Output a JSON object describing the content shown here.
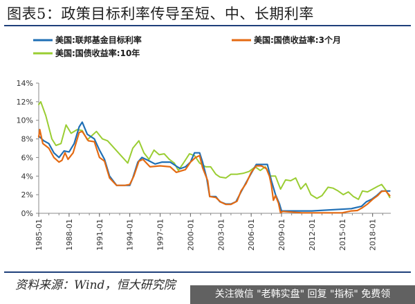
{
  "page": {
    "title": "图表5：政策目标利率传导至短、中、长期利率",
    "source": "资料来源：Wind，恒大研究院",
    "watermark": "关注微信 \"老韩实盘\" 回复 \"指标\" 免费领"
  },
  "chart_data": {
    "type": "line",
    "title": "图表5：政策目标利率传导至短、中、长期利率",
    "xlabel": "",
    "ylabel": "",
    "xlim": [
      1985,
      2019.8
    ],
    "ylim": [
      0,
      14
    ],
    "y_ticks": [
      "0%",
      "2%",
      "4%",
      "6%",
      "8%",
      "10%",
      "12%",
      "14%"
    ],
    "x_ticks": [
      "1985-01",
      "1988-01",
      "1991-01",
      "1994-01",
      "1997-01",
      "2000-01",
      "2003-01",
      "2006-01",
      "2009-01",
      "2012-01",
      "2015-01",
      "2018-01"
    ],
    "x_tick_values": [
      1985,
      1988,
      1991,
      1994,
      1997,
      2000,
      2003,
      2006,
      2009,
      2012,
      2015,
      2018
    ],
    "grid": false,
    "legend_position": "top",
    "series": [
      {
        "name": "美国:联邦基金目标利率",
        "color": "#1f6fb5",
        "x": [
          1985.0,
          1985.5,
          1986.0,
          1986.5,
          1987.0,
          1987.5,
          1988.0,
          1988.5,
          1989.0,
          1989.3,
          1989.8,
          1990.5,
          1991.0,
          1991.5,
          1992.0,
          1992.7,
          1993.5,
          1994.0,
          1994.3,
          1994.8,
          1995.2,
          1995.8,
          1996.5,
          1997.2,
          1998.0,
          1998.7,
          1999.0,
          1999.5,
          2000.0,
          2000.4,
          2000.9,
          2001.2,
          2001.6,
          2001.9,
          2002.5,
          2002.9,
          2003.5,
          2004.0,
          2004.5,
          2005.0,
          2005.5,
          2006.0,
          2006.5,
          2007.0,
          2007.6,
          2008.0,
          2008.4,
          2008.8,
          2009.0,
          2012.0,
          2015.9,
          2016.9,
          2017.4,
          2017.9,
          2018.4,
          2018.9,
          2019.4,
          2019.7
        ],
        "y": [
          8.3,
          7.8,
          7.5,
          6.5,
          6.0,
          6.7,
          6.6,
          7.5,
          9.3,
          9.8,
          8.5,
          8.0,
          6.8,
          5.8,
          4.0,
          3.0,
          3.0,
          3.0,
          3.8,
          5.5,
          6.0,
          5.7,
          5.3,
          5.5,
          5.5,
          5.0,
          4.8,
          5.0,
          5.5,
          6.5,
          6.5,
          5.5,
          3.8,
          1.8,
          1.8,
          1.25,
          1.0,
          1.0,
          1.25,
          2.3,
          3.3,
          4.3,
          5.25,
          5.25,
          5.25,
          3.5,
          2.0,
          1.0,
          0.25,
          0.25,
          0.5,
          0.75,
          1.25,
          1.5,
          1.9,
          2.4,
          2.4,
          2.4
        ]
      },
      {
        "name": "美国:国债收益率:3个月",
        "color": "#e46a12",
        "x": [
          1985.0,
          1985.1,
          1985.4,
          1986.0,
          1986.5,
          1987.0,
          1987.3,
          1987.6,
          1987.9,
          1988.4,
          1989.0,
          1989.3,
          1989.9,
          1990.5,
          1991.0,
          1991.5,
          1992.0,
          1992.7,
          1993.5,
          1994.0,
          1994.4,
          1994.9,
          1995.3,
          1996.0,
          1997.0,
          1998.0,
          1998.6,
          1998.9,
          1999.5,
          2000.0,
          2000.5,
          2000.9,
          2001.2,
          2001.7,
          2001.9,
          2002.5,
          2003.0,
          2003.5,
          2004.0,
          2004.6,
          2005.0,
          2005.5,
          2006.0,
          2006.5,
          2007.0,
          2007.5,
          2007.8,
          2008.0,
          2008.2,
          2008.4,
          2008.7,
          2008.9,
          2009.1,
          2011.0,
          2013.0,
          2015.0,
          2015.9,
          2016.5,
          2017.0,
          2017.5,
          2018.0,
          2018.5,
          2018.9,
          2019.3,
          2019.7
        ],
        "y": [
          8.2,
          9.0,
          7.5,
          7.0,
          6.0,
          5.5,
          5.7,
          6.5,
          5.8,
          6.5,
          8.7,
          8.8,
          7.8,
          7.7,
          6.0,
          5.6,
          3.8,
          3.0,
          3.0,
          3.1,
          4.0,
          5.6,
          5.8,
          5.0,
          5.1,
          5.0,
          4.4,
          4.5,
          4.7,
          5.5,
          6.0,
          6.2,
          4.9,
          3.5,
          1.8,
          1.7,
          1.2,
          0.95,
          0.95,
          1.3,
          2.4,
          3.2,
          4.4,
          5.1,
          5.1,
          4.8,
          4.0,
          3.0,
          1.4,
          1.9,
          1.1,
          0.05,
          0.2,
          0.05,
          0.05,
          0.05,
          0.25,
          0.3,
          0.6,
          1.0,
          1.5,
          1.9,
          2.35,
          2.4,
          1.9
        ]
      },
      {
        "name": "美国:国债收益率:10年",
        "color": "#9acd32",
        "x": [
          1985.0,
          1985.2,
          1985.7,
          1986.3,
          1986.7,
          1987.2,
          1987.7,
          1988.2,
          1988.8,
          1989.3,
          1989.8,
          1990.2,
          1990.7,
          1991.3,
          1991.8,
          1992.3,
          1992.8,
          1993.3,
          1993.8,
          1994.3,
          1994.9,
          1995.4,
          1995.9,
          1996.4,
          1996.9,
          1997.4,
          1997.9,
          1998.4,
          1998.8,
          1999.3,
          1999.9,
          2000.4,
          2000.9,
          2001.5,
          2002.0,
          2002.5,
          2002.9,
          2003.5,
          2004.0,
          2004.6,
          2005.2,
          2005.8,
          2006.4,
          2006.9,
          2007.4,
          2007.9,
          2008.4,
          2008.9,
          2009.4,
          2009.9,
          2010.4,
          2010.9,
          2011.4,
          2011.9,
          2012.5,
          2013.0,
          2013.6,
          2014.1,
          2014.6,
          2015.1,
          2015.6,
          2016.1,
          2016.6,
          2017.0,
          2017.5,
          2018.0,
          2018.5,
          2018.9,
          2019.3,
          2019.7
        ],
        "y": [
          11.7,
          12.0,
          10.5,
          8.0,
          7.3,
          7.5,
          9.5,
          8.6,
          9.0,
          8.9,
          7.9,
          8.3,
          8.8,
          8.0,
          7.8,
          7.2,
          6.6,
          6.0,
          5.4,
          7.0,
          7.8,
          6.5,
          5.8,
          6.8,
          6.3,
          6.4,
          5.8,
          5.4,
          4.6,
          5.4,
          6.4,
          6.2,
          5.4,
          5.0,
          5.0,
          4.2,
          3.9,
          3.8,
          4.2,
          4.2,
          4.3,
          4.5,
          5.0,
          4.6,
          5.0,
          4.0,
          4.0,
          2.6,
          3.6,
          3.5,
          3.8,
          2.6,
          3.2,
          2.0,
          1.6,
          1.9,
          2.8,
          2.7,
          2.4,
          2.0,
          2.3,
          1.8,
          1.5,
          2.4,
          2.3,
          2.6,
          2.9,
          3.1,
          2.5,
          1.7
        ]
      }
    ]
  }
}
